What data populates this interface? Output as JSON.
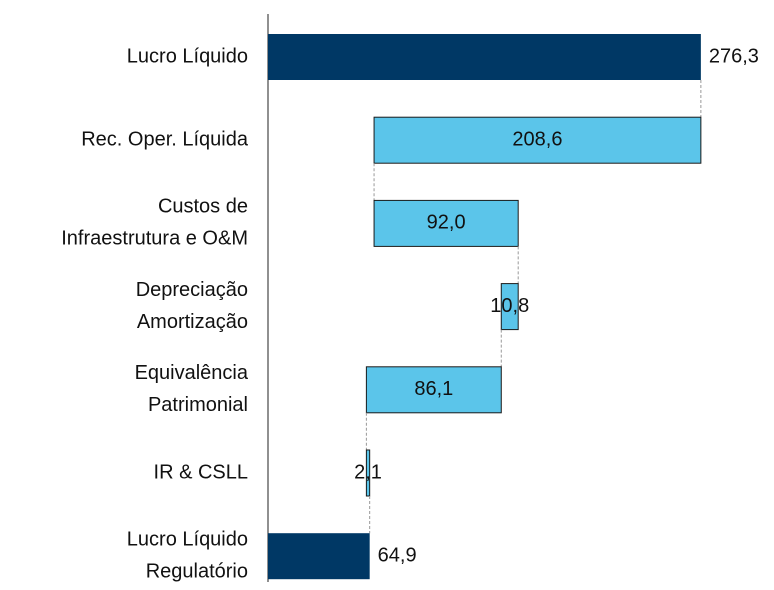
{
  "chart_data": {
    "type": "waterfall",
    "orientation": "horizontal",
    "categories": [
      [
        "Lucro Líquido"
      ],
      [
        "Rec. Oper. Líquida"
      ],
      [
        "Custos de ",
        "Infraestrutura e O&M"
      ],
      [
        "Depreciação",
        "Amortização"
      ],
      [
        "Equivalência",
        "Patrimonial"
      ],
      [
        "IR & CSLL"
      ],
      [
        "Lucro Líquido",
        "Regulatório"
      ]
    ],
    "measure": [
      "total",
      "relative",
      "relative",
      "relative",
      "relative",
      "relative",
      "total"
    ],
    "values": [
      276.3,
      -208.6,
      92.0,
      -10.8,
      -86.1,
      2.1,
      64.9
    ],
    "value_labels": [
      "276,3",
      "208,6",
      "92,0",
      "10,8",
      "86,1",
      "2,1",
      "64,9"
    ],
    "total_color": "#003865",
    "step_color": "#5bc5ea",
    "xlim": [
      0,
      300
    ]
  }
}
